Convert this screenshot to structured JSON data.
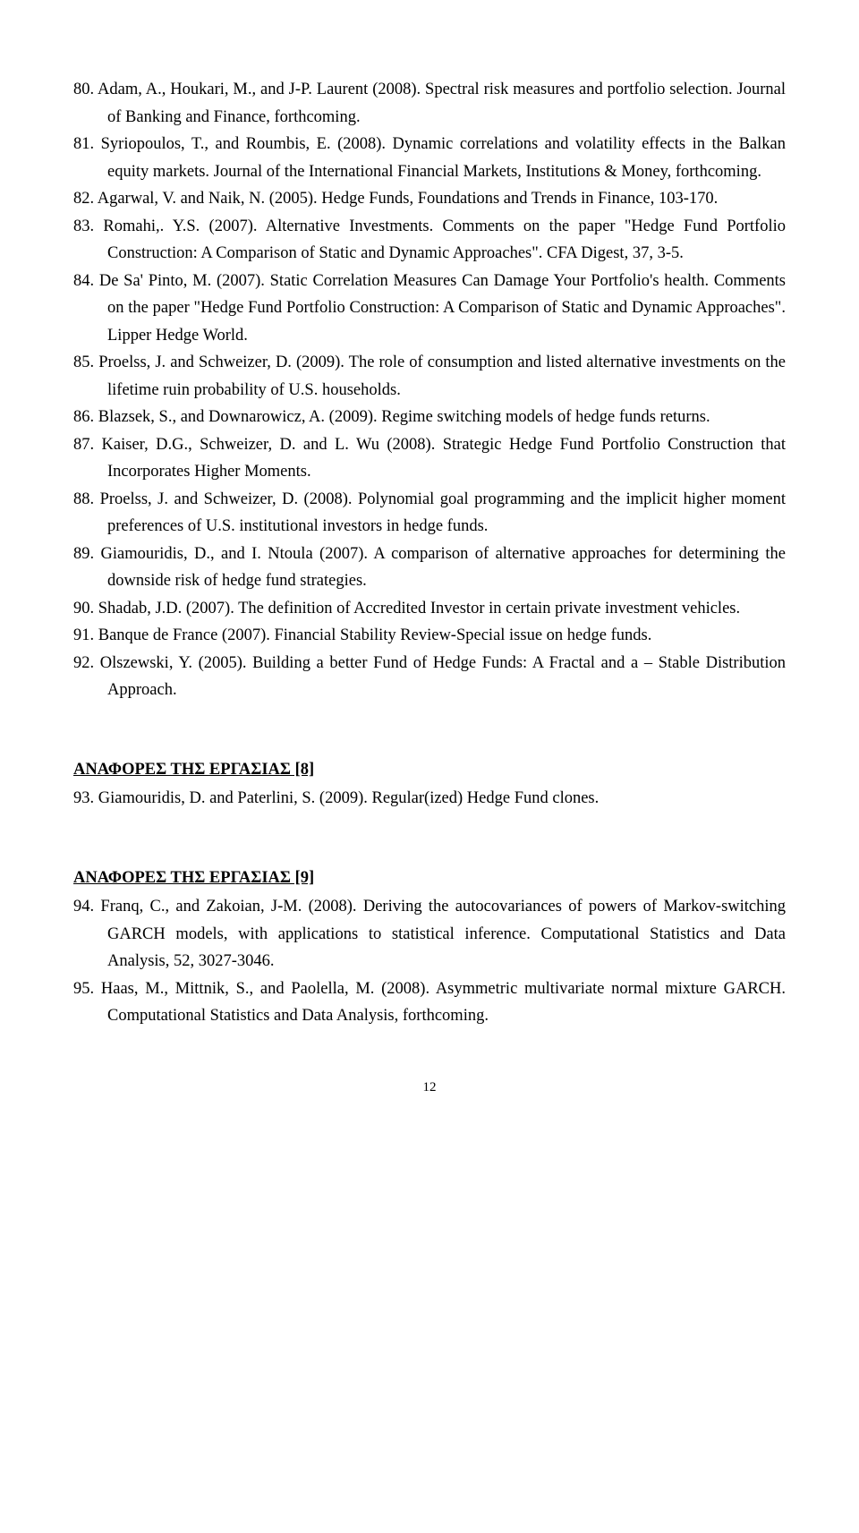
{
  "refs_main": [
    "Adam, A., Houkari, M., and J-P. Laurent (2008). Spectral risk measures and portfolio selection. Journal of Banking and Finance, forthcoming.",
    "Syriopoulos, T., and Roumbis, E. (2008). Dynamic correlations and volatility effects in the Balkan equity markets. Journal of the International Financial Markets, Institutions & Money, forthcoming.",
    "Agarwal, V. and Naik, N. (2005). Hedge Funds, Foundations and Trends in Finance, 103-170.",
    "Romahi,. Y.S. (2007). Alternative Investments. Comments on the paper \"Hedge Fund Portfolio Construction: A Comparison of Static and Dynamic Approaches\". CFA Digest, 37, 3-5.",
    "De Sa' Pinto, M. (2007). Static Correlation Measures Can Damage Your Portfolio's health. Comments on the paper \"Hedge Fund Portfolio Construction: A Comparison of Static and Dynamic Approaches\". Lipper Hedge World.",
    "Proelss, J. and Schweizer, D. (2009). The role of consumption and listed alternative investments on the lifetime ruin probability of U.S. households.",
    "Blazsek, S., and Downarowicz, A. (2009). Regime switching models of hedge funds returns.",
    "Kaiser, D.G., Schweizer, D. and L. Wu (2008). Strategic Hedge Fund Portfolio Construction that Incorporates Higher Moments.",
    "Proelss, J. and Schweizer, D. (2008). Polynomial goal programming and the implicit higher moment preferences of U.S. institutional investors in hedge funds.",
    "Giamouridis, D., and I. Ntoula (2007). A comparison of alternative approaches for determining the downside risk of hedge fund strategies.",
    "Shadab, J.D. (2007). The definition of Accredited Investor in certain private investment vehicles.",
    "Banque de France (2007). Financial Stability Review-Special issue on hedge funds.",
    "Olszewski, Y. (2005). Building a better Fund of Hedge Funds: A Fractal and a – Stable Distribution Approach."
  ],
  "heading8": "ΑΝΑΦΟΡΕΣ ΤΗΣ ΕΡΓΑΣΙΑΣ [8]",
  "refs_8": [
    "Giamouridis, D. and Paterlini, S. (2009). Regular(ized) Hedge Fund clones."
  ],
  "heading9": "ΑΝΑΦΟΡΕΣ ΤΗΣ ΕΡΓΑΣΙΑΣ [9]",
  "refs_9": [
    "Franq, C., and Zakoian, J-M. (2008). Deriving the autocovariances of powers of Markov-switching GARCH models, with applications to statistical inference. Computational Statistics and Data Analysis, 52, 3027-3046.",
    "Haas, M., Mittnik, S., and Paolella, M. (2008). Asymmetric multivariate normal mixture GARCH. Computational Statistics and Data Analysis, forthcoming."
  ],
  "page_number": "12"
}
